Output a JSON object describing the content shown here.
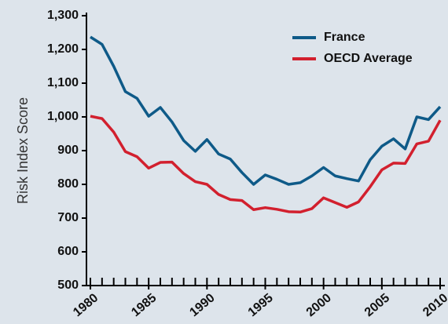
{
  "chart_data": {
    "type": "line",
    "y_label": "Risk Index Score",
    "x": [
      1980,
      1981,
      1982,
      1983,
      1984,
      1985,
      1986,
      1987,
      1988,
      1989,
      1990,
      1991,
      1992,
      1993,
      1994,
      1995,
      1996,
      1997,
      1998,
      1999,
      2000,
      2001,
      2002,
      2003,
      2004,
      2005,
      2006,
      2007,
      2008,
      2009,
      2010
    ],
    "series": [
      {
        "name": "France",
        "color": "#0e5a88",
        "values": [
          1237,
          1215,
          1150,
          1075,
          1055,
          1002,
          1028,
          985,
          930,
          898,
          933,
          890,
          875,
          835,
          800,
          828,
          815,
          800,
          805,
          825,
          850,
          825,
          817,
          810,
          873,
          913,
          935,
          905,
          1000,
          992,
          1030
        ]
      },
      {
        "name": "OECD Average",
        "color": "#d2202e",
        "values": [
          1002,
          995,
          955,
          897,
          882,
          848,
          865,
          866,
          832,
          808,
          800,
          770,
          755,
          752,
          725,
          731,
          726,
          719,
          718,
          728,
          760,
          746,
          732,
          748,
          793,
          843,
          863,
          862,
          920,
          928,
          990
        ]
      }
    ],
    "xlim": [
      1980,
      2010
    ],
    "xticks": [
      1980,
      1985,
      1990,
      1995,
      2000,
      2005,
      2010
    ],
    "ylim": [
      500,
      1300
    ],
    "yticks": [
      500,
      600,
      700,
      800,
      900,
      {
        "value": 1000,
        "label": "1,000"
      },
      {
        "value": 1100,
        "label": "1,100"
      },
      {
        "value": 1200,
        "label": "1,200"
      },
      {
        "value": 1300,
        "label": "1,300"
      }
    ],
    "legend": "upper right"
  }
}
